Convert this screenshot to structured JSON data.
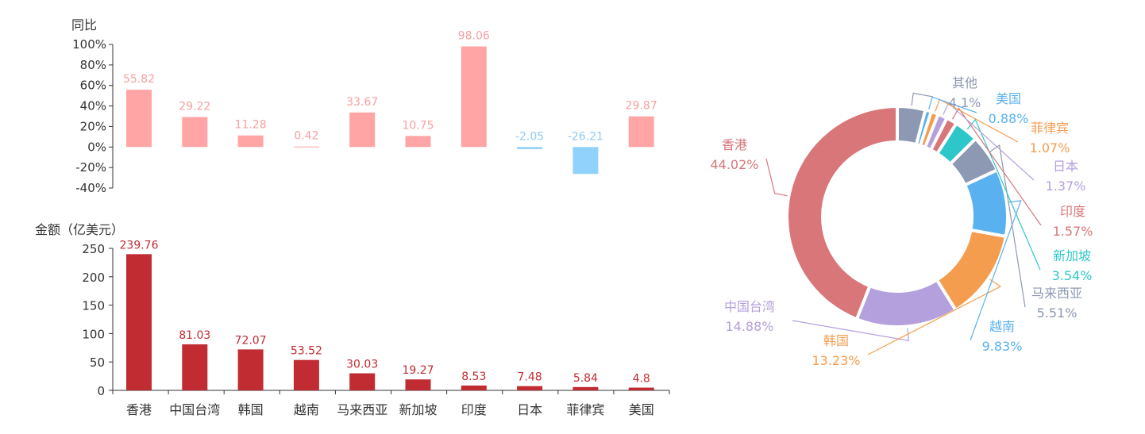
{
  "chart_data": [
    {
      "type": "bar",
      "ylabel": "同比",
      "ylim": [
        -40,
        100
      ],
      "yticks": [
        "100%",
        "80%",
        "60%",
        "40%",
        "20%",
        "0%",
        "-20%",
        "-40%"
      ],
      "categories": [
        "香港",
        "中国台湾",
        "韩国",
        "越南",
        "马来西亚",
        "新加坡",
        "印度",
        "日本",
        "菲律宾",
        "美国"
      ],
      "values": [
        55.82,
        29.22,
        11.28,
        0.42,
        33.67,
        10.75,
        98.06,
        -2.05,
        -26.21,
        29.87
      ],
      "value_labels": [
        "55.82",
        "29.22",
        "11.28",
        "0.42",
        "33.67",
        "10.75",
        "98.06",
        "-2.05",
        "-26.21",
        "29.87"
      ],
      "colors": {
        "positive": "#ffa5a6",
        "negative": "#91d2fc",
        "positive_label": "#f7a0a0",
        "negative_label": "#8ccbf4"
      }
    },
    {
      "type": "bar",
      "ylabel": "金额（亿美元）",
      "ylim": [
        0,
        250
      ],
      "yticks": [
        "250",
        "200",
        "150",
        "100",
        "50",
        "0"
      ],
      "categories": [
        "香港",
        "中国台湾",
        "韩国",
        "越南",
        "马来西亚",
        "新加坡",
        "印度",
        "日本",
        "菲律宾",
        "美国"
      ],
      "values": [
        239.76,
        81.03,
        72.07,
        53.52,
        30.03,
        19.27,
        8.53,
        7.48,
        5.84,
        4.8
      ],
      "value_labels": [
        "239.76",
        "81.03",
        "72.07",
        "53.52",
        "30.03",
        "19.27",
        "8.53",
        "7.48",
        "5.84",
        "4.8"
      ],
      "colors": {
        "bar": "#c12c33",
        "label": "#c12c33"
      }
    },
    {
      "type": "pie",
      "slices": [
        {
          "name": "香港",
          "value": 44.02,
          "label": "44.02%",
          "color": "#d8767a",
          "side": "left"
        },
        {
          "name": "中国台湾",
          "value": 14.88,
          "label": "14.88%",
          "color": "#b4a0dc",
          "side": "left"
        },
        {
          "name": "韩国",
          "value": 13.23,
          "label": "13.23%",
          "color": "#f59d4e",
          "side": "left"
        },
        {
          "name": "越南",
          "value": 9.83,
          "label": "9.83%",
          "color": "#5ab1ef",
          "side": "right"
        },
        {
          "name": "马来西亚",
          "value": 5.51,
          "label": "5.51%",
          "color": "#8d98b3",
          "side": "right"
        },
        {
          "name": "新加坡",
          "value": 3.54,
          "label": "3.54%",
          "color": "#2ec7c9",
          "side": "right"
        },
        {
          "name": "印度",
          "value": 1.57,
          "label": "1.57%",
          "color": "#d8767a",
          "side": "right"
        },
        {
          "name": "日本",
          "value": 1.37,
          "label": "1.37%",
          "color": "#b4a0dc",
          "side": "right"
        },
        {
          "name": "菲律宾",
          "value": 1.07,
          "label": "1.07%",
          "color": "#f59d4e",
          "side": "right"
        },
        {
          "name": "美国",
          "value": 0.88,
          "label": "0.88%",
          "color": "#5ab1ef",
          "side": "right"
        },
        {
          "name": "其他",
          "value": 4.1,
          "label": "4.1%",
          "color": "#8d98b3",
          "side": "right"
        }
      ]
    }
  ]
}
